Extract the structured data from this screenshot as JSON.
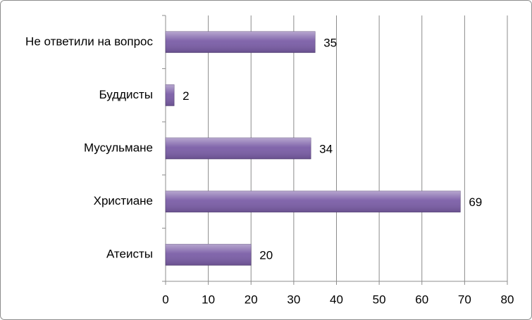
{
  "chart_data": {
    "type": "bar",
    "orientation": "horizontal",
    "categories": [
      "Не ответили на вопрос",
      "Буддисты",
      "Мусульмане",
      "Христиане",
      "Атеисты"
    ],
    "values": [
      35,
      2,
      34,
      69,
      20
    ],
    "color": "#7b5ea7",
    "xlim": [
      0,
      80
    ],
    "xticks": [
      0,
      10,
      20,
      30,
      40,
      50,
      60,
      70,
      80
    ],
    "grid": true
  }
}
